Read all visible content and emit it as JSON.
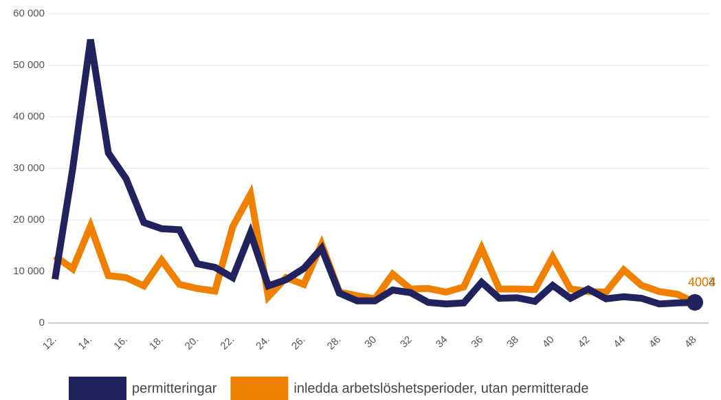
{
  "chart_data": {
    "type": "line",
    "categories": [
      "12.",
      null,
      "14.",
      null,
      "16.",
      null,
      "18.",
      null,
      "20.",
      null,
      "22.",
      null,
      "24.",
      null,
      "26.",
      null,
      "28.",
      null,
      "30",
      null,
      "32",
      null,
      "34",
      null,
      "36",
      null,
      "38",
      null,
      "40",
      null,
      "42",
      null,
      "44",
      null,
      "46",
      null,
      "48"
    ],
    "series": [
      {
        "name": "permitteringar",
        "color": "#22225e",
        "values": [
          8500,
          30000,
          55000,
          33000,
          28000,
          19500,
          18300,
          18100,
          11500,
          10800,
          8800,
          17500,
          7200,
          8400,
          10600,
          14500,
          5800,
          4300,
          4300,
          6400,
          5900,
          4000,
          3700,
          3900,
          7900,
          4800,
          4900,
          4200,
          7300,
          4800,
          6600,
          4700,
          5100,
          4800,
          3700,
          3900,
          4004
        ]
      },
      {
        "name": "inledda arbetslöshetsperioder, utan permitterade",
        "color": "#f08000",
        "values": [
          13000,
          10500,
          18800,
          9200,
          8800,
          7200,
          12200,
          7500,
          6700,
          6200,
          18700,
          25000,
          5100,
          8800,
          7500,
          15300,
          6000,
          5300,
          4700,
          9500,
          6600,
          6700,
          6000,
          7000,
          14500,
          6600,
          6600,
          6500,
          12800,
          6600,
          6100,
          6000,
          10300,
          7300,
          6100,
          5600,
          4003
        ]
      }
    ],
    "ylim": [
      0,
      60000
    ],
    "yticks": [
      0,
      {
        "value": 10000,
        "label": "10 000"
      },
      {
        "value": 20000,
        "label": "20 000"
      },
      {
        "value": 30000,
        "label": "30 000"
      },
      {
        "value": 40000,
        "label": "40 000"
      },
      {
        "value": 50000,
        "label": "50 000"
      },
      {
        "value": 60000,
        "label": "60 000"
      }
    ],
    "grid": true,
    "legend": "bottom"
  }
}
